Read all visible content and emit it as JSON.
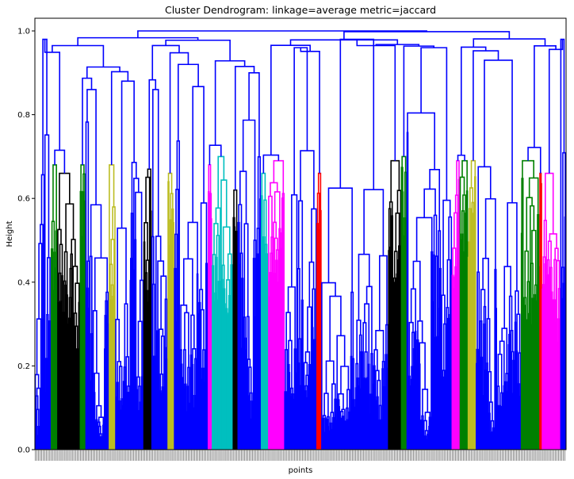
{
  "chart_data": {
    "type": "dendrogram",
    "title": "Cluster Dendrogram: linkage=average metric=jaccard",
    "xlabel": "points",
    "ylabel": "Height",
    "ylim": [
      0,
      1.0
    ],
    "yticks": [
      0.0,
      0.2,
      0.4,
      0.6,
      0.8,
      1.0
    ],
    "ytick_labels": [
      "0.0",
      "0.2",
      "0.4",
      "0.6",
      "0.8",
      "1.0"
    ],
    "grid": false,
    "root_height": 1.0,
    "cluster_color_threshold": 0.7,
    "above_threshold_color": "#0000ff",
    "approx_leaf_count": 660,
    "clusters": [
      {
        "color": "#0000ff",
        "leaf_start": 0.0,
        "leaf_end": 0.03,
        "max_height": 0.98,
        "min_height": 0.0
      },
      {
        "color": "#008000",
        "leaf_start": 0.03,
        "leaf_end": 0.042,
        "max_height": 0.68,
        "min_height": 0.3
      },
      {
        "color": "#000000",
        "leaf_start": 0.042,
        "leaf_end": 0.085,
        "max_height": 0.66,
        "min_height": 0.3
      },
      {
        "color": "#008000",
        "leaf_start": 0.085,
        "leaf_end": 0.096,
        "max_height": 0.68,
        "min_height": 0.4
      },
      {
        "color": "#0000ff",
        "leaf_start": 0.096,
        "leaf_end": 0.14,
        "max_height": 0.86,
        "min_height": 0.0
      },
      {
        "color": "#bcbd22",
        "leaf_start": 0.14,
        "leaf_end": 0.152,
        "max_height": 0.68,
        "min_height": 0.45
      },
      {
        "color": "#0000ff",
        "leaf_start": 0.152,
        "leaf_end": 0.205,
        "max_height": 0.88,
        "min_height": 0.0
      },
      {
        "color": "#000000",
        "leaf_start": 0.205,
        "leaf_end": 0.22,
        "max_height": 0.67,
        "min_height": 0.4
      },
      {
        "color": "#0000ff",
        "leaf_start": 0.22,
        "leaf_end": 0.25,
        "max_height": 0.86,
        "min_height": 0.0
      },
      {
        "color": "#bcbd22",
        "leaf_start": 0.25,
        "leaf_end": 0.262,
        "max_height": 0.66,
        "min_height": 0.45
      },
      {
        "color": "#0000ff",
        "leaf_start": 0.262,
        "leaf_end": 0.325,
        "max_height": 0.92,
        "min_height": 0.0
      },
      {
        "color": "#ff00ff",
        "leaf_start": 0.325,
        "leaf_end": 0.333,
        "max_height": 0.68,
        "min_height": 0.45
      },
      {
        "color": "#00bfbf",
        "leaf_start": 0.333,
        "leaf_end": 0.372,
        "max_height": 0.7,
        "min_height": 0.35
      },
      {
        "color": "#000000",
        "leaf_start": 0.372,
        "leaf_end": 0.382,
        "max_height": 0.62,
        "min_height": 0.4
      },
      {
        "color": "#0000ff",
        "leaf_start": 0.382,
        "leaf_end": 0.425,
        "max_height": 0.9,
        "min_height": 0.0
      },
      {
        "color": "#00bfbf",
        "leaf_start": 0.425,
        "leaf_end": 0.44,
        "max_height": 0.66,
        "min_height": 0.4
      },
      {
        "color": "#ff00ff",
        "leaf_start": 0.44,
        "leaf_end": 0.47,
        "max_height": 0.69,
        "min_height": 0.45
      },
      {
        "color": "#0000ff",
        "leaf_start": 0.47,
        "leaf_end": 0.53,
        "max_height": 0.96,
        "min_height": 0.0
      },
      {
        "color": "#ff0000",
        "leaf_start": 0.53,
        "leaf_end": 0.54,
        "max_height": 0.66,
        "min_height": 0.45
      },
      {
        "color": "#0000ff",
        "leaf_start": 0.54,
        "leaf_end": 0.665,
        "max_height": 0.98,
        "min_height": 0.0
      },
      {
        "color": "#000000",
        "leaf_start": 0.665,
        "leaf_end": 0.69,
        "max_height": 0.69,
        "min_height": 0.4
      },
      {
        "color": "#008000",
        "leaf_start": 0.69,
        "leaf_end": 0.7,
        "max_height": 0.7,
        "min_height": 0.45
      },
      {
        "color": "#0000ff",
        "leaf_start": 0.7,
        "leaf_end": 0.785,
        "max_height": 0.96,
        "min_height": 0.0
      },
      {
        "color": "#ff00ff",
        "leaf_start": 0.785,
        "leaf_end": 0.8,
        "max_height": 0.69,
        "min_height": 0.45
      },
      {
        "color": "#008000",
        "leaf_start": 0.8,
        "leaf_end": 0.815,
        "max_height": 0.69,
        "min_height": 0.45
      },
      {
        "color": "#bcbd22",
        "leaf_start": 0.815,
        "leaf_end": 0.83,
        "max_height": 0.69,
        "min_height": 0.45
      },
      {
        "color": "#0000ff",
        "leaf_start": 0.83,
        "leaf_end": 0.915,
        "max_height": 0.93,
        "min_height": 0.0
      },
      {
        "color": "#008000",
        "leaf_start": 0.915,
        "leaf_end": 0.95,
        "max_height": 0.69,
        "min_height": 0.3
      },
      {
        "color": "#ff0000",
        "leaf_start": 0.95,
        "leaf_end": 0.955,
        "max_height": 0.66,
        "min_height": 0.45
      },
      {
        "color": "#ff00ff",
        "leaf_start": 0.955,
        "leaf_end": 0.99,
        "max_height": 0.66,
        "min_height": 0.3
      },
      {
        "color": "#0000ff",
        "leaf_start": 0.99,
        "leaf_end": 1.0,
        "max_height": 0.98,
        "min_height": 0.0
      }
    ]
  }
}
